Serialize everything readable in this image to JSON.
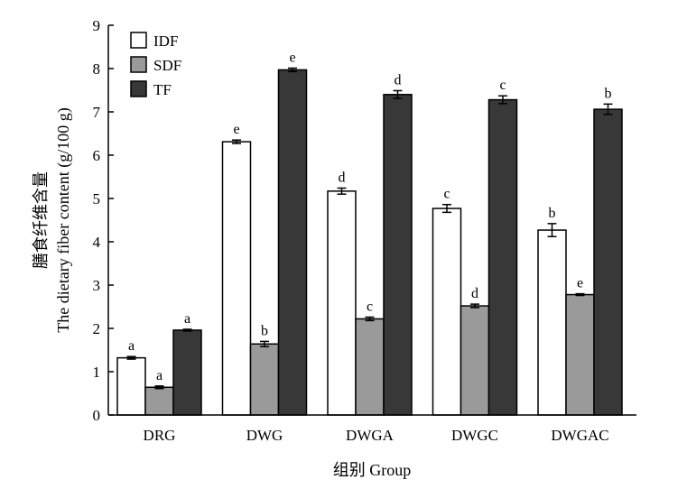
{
  "chart_data": {
    "type": "bar",
    "xlabel": "组别 Group",
    "ylabel_cn": "膳食纤维含量",
    "ylabel_en": "The dietary fiber content (g/100 g)",
    "ylim": [
      0,
      9
    ],
    "yticks": [
      "0",
      "1",
      "2",
      "3",
      "4",
      "5",
      "6",
      "7",
      "8",
      "9"
    ],
    "categories": [
      "DRG",
      "DWG",
      "DWGA",
      "DWGC",
      "DWGAC"
    ],
    "legend_position": "top-left",
    "grid": false,
    "series": [
      {
        "name": "IDF",
        "color": "#ffffff",
        "values": [
          1.32,
          6.31,
          5.17,
          4.77,
          4.27
        ],
        "errors": [
          0.03,
          0.04,
          0.07,
          0.09,
          0.15
        ],
        "letters": [
          "a",
          "e",
          "d",
          "c",
          "b"
        ]
      },
      {
        "name": "SDF",
        "color": "#9a9a9a",
        "values": [
          0.64,
          1.64,
          2.22,
          2.52,
          2.78
        ],
        "errors": [
          0.03,
          0.06,
          0.04,
          0.04,
          0.02
        ],
        "letters": [
          "a",
          "b",
          "c",
          "d",
          "e"
        ]
      },
      {
        "name": "TF",
        "color": "#383838",
        "values": [
          1.96,
          7.97,
          7.4,
          7.28,
          7.06
        ],
        "errors": [
          0.02,
          0.04,
          0.09,
          0.09,
          0.12
        ],
        "letters": [
          "a",
          "e",
          "d",
          "c",
          "b"
        ]
      }
    ]
  }
}
